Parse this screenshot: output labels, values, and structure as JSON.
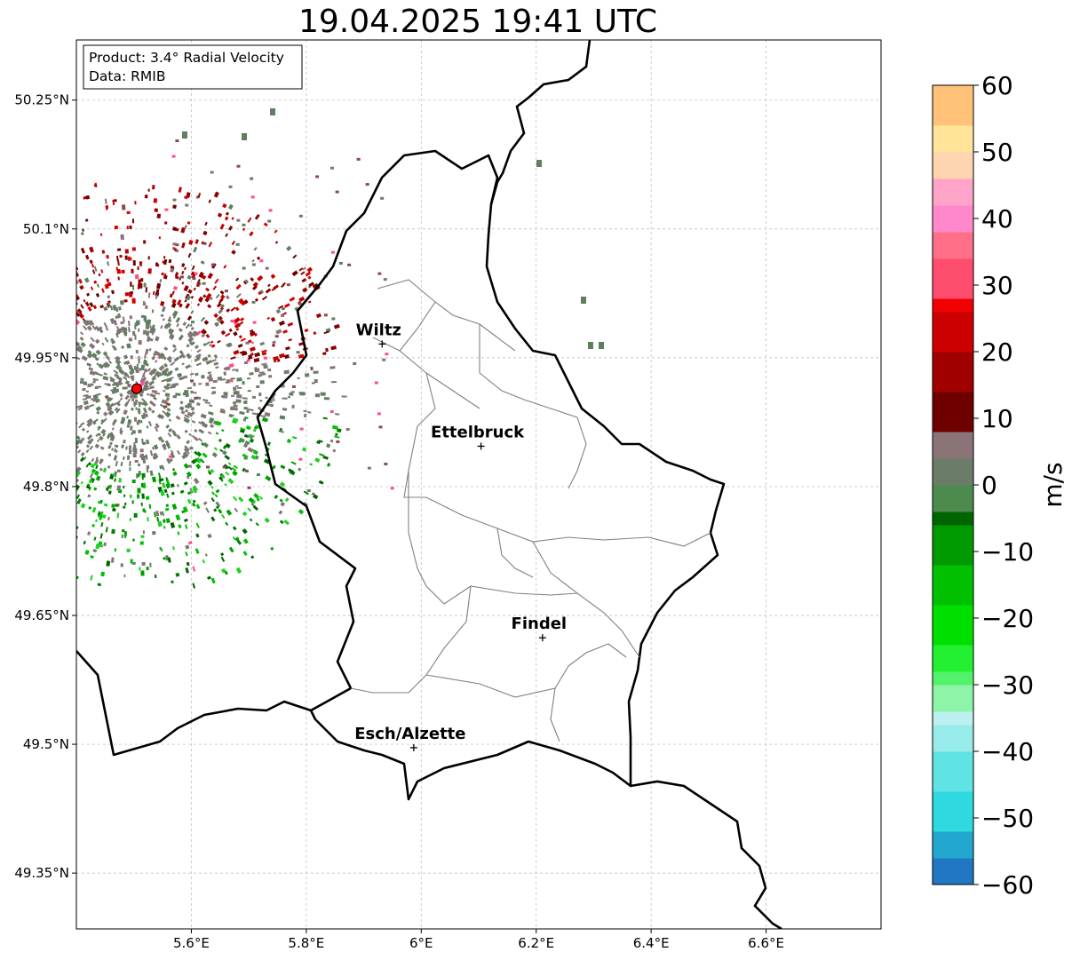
{
  "title": "19.04.2025 19:41 UTC",
  "info_box": {
    "product": "Product: 3.4° Radial Velocity",
    "data": "Data: RMIB"
  },
  "map": {
    "lon_range": [
      5.4,
      6.8
    ],
    "lat_range": [
      49.285,
      50.32
    ],
    "x_ticks": [
      "5.6°E",
      "5.8°E",
      "6°E",
      "6.2°E",
      "6.4°E",
      "6.6°E"
    ],
    "x_tick_values": [
      5.6,
      5.8,
      6.0,
      6.2,
      6.4,
      6.6
    ],
    "y_ticks": [
      "50.25°N",
      "50.1°N",
      "49.95°N",
      "49.8°N",
      "49.65°N",
      "49.5°N",
      "49.35°N"
    ],
    "y_tick_values": [
      50.25,
      50.1,
      49.95,
      49.8,
      49.65,
      49.5,
      49.35
    ],
    "grid": true,
    "radar_site": {
      "lon": 5.505,
      "lat": 49.914,
      "color": "#ff0000"
    },
    "cities": [
      {
        "name": "Wiltz",
        "lon": 5.932,
        "lat": 49.966
      },
      {
        "name": "Ettelbruck",
        "lon": 6.104,
        "lat": 49.847
      },
      {
        "name": "Findel",
        "lon": 6.211,
        "lat": 49.624
      },
      {
        "name": "Esch/Alzette",
        "lon": 5.987,
        "lat": 49.496
      }
    ]
  },
  "colorbar": {
    "label": "m/s",
    "min": -60,
    "max": 60,
    "ticks": [
      "60",
      "50",
      "40",
      "30",
      "20",
      "10",
      "0",
      "−10",
      "−20",
      "−30",
      "−40",
      "−50",
      "−60"
    ],
    "tick_values": [
      60,
      50,
      40,
      30,
      20,
      10,
      0,
      -10,
      -20,
      -30,
      -40,
      -50,
      -60
    ],
    "stops": [
      {
        "v": -60,
        "c": "#1f78c1"
      },
      {
        "v": -56,
        "c": "#22a8cf"
      },
      {
        "v": -52,
        "c": "#2fd9e0"
      },
      {
        "v": -46,
        "c": "#5fe3e3"
      },
      {
        "v": -40,
        "c": "#97ebeb"
      },
      {
        "v": -36,
        "c": "#bdf0f0"
      },
      {
        "v": -34,
        "c": "#8ef5a8"
      },
      {
        "v": -30,
        "c": "#52f26a"
      },
      {
        "v": -28,
        "c": "#22f030"
      },
      {
        "v": -24,
        "c": "#00e000"
      },
      {
        "v": -18,
        "c": "#00c000"
      },
      {
        "v": -12,
        "c": "#009a00"
      },
      {
        "v": -6,
        "c": "#006400"
      },
      {
        "v": -5,
        "c": "#4d8a4d"
      },
      {
        "v": -1,
        "c": "#6b7d68"
      },
      {
        "v": 3,
        "c": "#8a7478"
      },
      {
        "v": 7,
        "c": "#8a4a52"
      },
      {
        "v": 8,
        "c": "#6e0000"
      },
      {
        "v": 14,
        "c": "#a00000"
      },
      {
        "v": 20,
        "c": "#cc0000"
      },
      {
        "v": 26,
        "c": "#f00000"
      },
      {
        "v": 28,
        "c": "#ff4d6d"
      },
      {
        "v": 34,
        "c": "#ff6f88"
      },
      {
        "v": 38,
        "c": "#ff88cc"
      },
      {
        "v": 42,
        "c": "#ffa3c8"
      },
      {
        "v": 46,
        "c": "#ffd4b0"
      },
      {
        "v": 50,
        "c": "#ffe49a"
      },
      {
        "v": 54,
        "c": "#ffc278"
      },
      {
        "v": 60,
        "c": "#ff9a4d"
      }
    ]
  },
  "echo_colors": {
    "outbound": [
      "#8b0000",
      "#a00000",
      "#c00000",
      "#d80000",
      "#6e0000"
    ],
    "zero": [
      "#6b7d68",
      "#7f7477",
      "#8a7478",
      "#5f7f5f"
    ],
    "inbound": [
      "#00a000",
      "#00c000",
      "#008000",
      "#22d022",
      "#006400"
    ],
    "sparse": [
      "#ff4d88",
      "#7f7477",
      "#8a4a52",
      "#5f7f5f"
    ]
  }
}
